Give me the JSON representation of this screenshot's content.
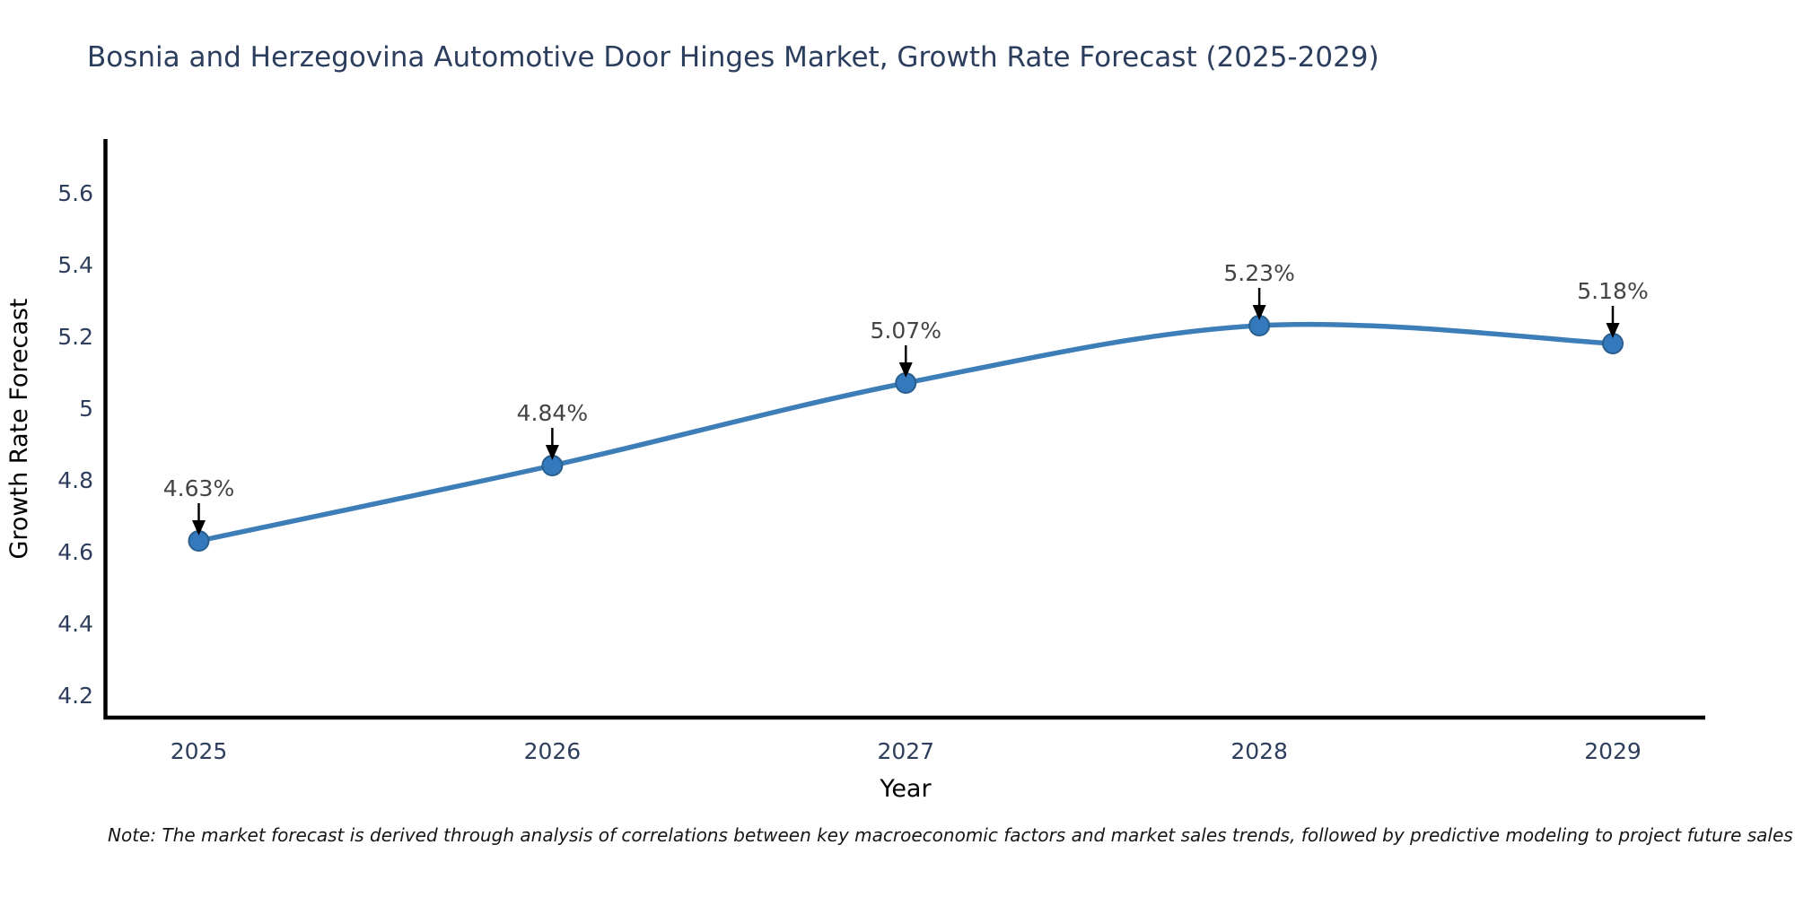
{
  "title": "Bosnia and Herzegovina Automotive Door Hinges Market, Growth Rate Forecast (2025-2029)",
  "note": "Note: The market forecast is derived through analysis of correlations between key macroeconomic factors and market sales trends, followed by predictive modeling to project future sales",
  "chart_data": {
    "type": "line",
    "title": "Bosnia and Herzegovina Automotive Door Hinges Market, Growth Rate Forecast (2025-2029)",
    "xlabel": "Year",
    "ylabel": "Growth Rate Forecast",
    "categories": [
      "2025",
      "2026",
      "2027",
      "2028",
      "2029"
    ],
    "values": [
      4.63,
      4.84,
      5.07,
      5.23,
      5.18
    ],
    "point_labels": [
      "4.63%",
      "4.84%",
      "5.07%",
      "5.23%",
      "5.18%"
    ],
    "ytick_labels": [
      "5.6",
      "5.4",
      "5.2",
      "5",
      "4.8",
      "4.6",
      "4.4",
      "4.2"
    ],
    "ytick_values": [
      5.6,
      5.4,
      5.2,
      5.0,
      4.8,
      4.6,
      4.4,
      4.2
    ],
    "ylim": [
      4.14,
      5.76
    ],
    "grid": false,
    "legend_position": "none",
    "line_shape": "spline",
    "marker": "circle",
    "annotation_style": "value label with downward black arrow to each point"
  },
  "colors": {
    "background": "#ffffff",
    "line": "#3d7db8",
    "marker_fill": "#3579bd",
    "marker_edge": "#2a5f8e",
    "axis": "#000000",
    "arrow": "#000000",
    "annotation_text": "#444444",
    "title_text": "#2c3e5d",
    "tick_text": "#2e3e5c",
    "note_text": "#161616"
  }
}
